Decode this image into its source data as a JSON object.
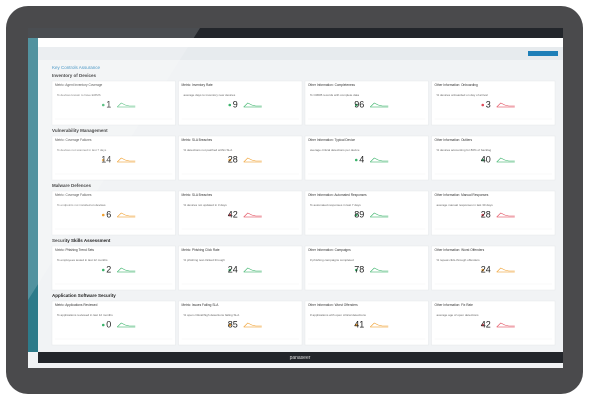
{
  "page": {
    "title": "Key Controls Assurance",
    "brand": "panaseer",
    "sections": [
      {
        "title": "Inventory of Devices",
        "cards": [
          {
            "title": "Metric: Agent Inventory Coverage",
            "description": "% devices known to have EMMS",
            "value": "1",
            "color": "#3bb36b"
          },
          {
            "title": "Metric: Inventory Rate",
            "description": "average days to inventory new devices",
            "value": "9",
            "color": "#3bb36b"
          },
          {
            "title": "Other Information: Completeness",
            "description": "% CMDB records with complete data",
            "value": "96",
            "color": "#3bb36b"
          },
          {
            "title": "Other Information: Onboarding",
            "description": "% devices onboarded on day of arrival",
            "value": "3",
            "color": "#e04a5a"
          }
        ]
      },
      {
        "title": "Vulnerability Management",
        "cards": [
          {
            "title": "Metric: Coverage Failures",
            "description": "% devices not scanned in last 7 days",
            "value": "14",
            "color": "#f0a030"
          },
          {
            "title": "Metric: SLA Breaches",
            "description": "% detections not patched within SLA",
            "value": "28",
            "color": "#f0a030"
          },
          {
            "title": "Other Information: Typical Device",
            "description": "average critical detections per device",
            "value": "4",
            "color": "#3bb36b"
          },
          {
            "title": "Other Information: Outliers",
            "description": "% devices accounting for 80% of backlog",
            "value": "40",
            "color": "#3bb36b"
          }
        ]
      },
      {
        "title": "Malware Defences",
        "cards": [
          {
            "title": "Metric: Coverage Failures",
            "description": "% endpoints not installed on devices",
            "value": "6",
            "color": "#f0a030"
          },
          {
            "title": "Metric: SLA Breaches",
            "description": "% devices not updated in 3 days",
            "value": "42",
            "color": "#e04a5a"
          },
          {
            "title": "Other Information: Automated Responses",
            "description": "% automated responses in last 7 days",
            "value": "89",
            "color": "#3bb36b"
          },
          {
            "title": "Other Information: Manual Responses",
            "description": "average manual responses in last 30 days",
            "value": "28",
            "color": "#e04a5a"
          }
        ]
      },
      {
        "title": "Security Skills Assessment",
        "cards": [
          {
            "title": "Metric: Phishing Trend Sets",
            "description": "% employees tested in last 12 months",
            "value": "2",
            "color": "#3bb36b"
          },
          {
            "title": "Metric: Phishing Click Rate",
            "description": "% phishing test clicked through",
            "value": "24",
            "color": "#3bb36b"
          },
          {
            "title": "Other Information: Campaigns",
            "description": "# phishing campaigns completed",
            "value": "78",
            "color": "#3bb36b"
          },
          {
            "title": "Other Information: Worst Offenders",
            "description": "% repeat click-through offenders",
            "value": "24",
            "color": "#f0a030"
          }
        ]
      },
      {
        "title": "Application Software Security",
        "cards": [
          {
            "title": "Metric: Applications Reviewed",
            "description": "% applications reviewed in last 12 months",
            "value": "0",
            "color": "#3bb36b"
          },
          {
            "title": "Metric: Issues Failing SLA",
            "description": "% open critical/high detections failing SLA",
            "value": "85",
            "color": "#f0a030"
          },
          {
            "title": "Other Information: Worst Offenders",
            "description": "# applications with open critical detections",
            "value": "41",
            "color": "#f0a030"
          },
          {
            "title": "Other Information: Fix Rate",
            "description": "average age of open detections",
            "value": "42",
            "color": "#e04a5a"
          }
        ]
      }
    ]
  }
}
